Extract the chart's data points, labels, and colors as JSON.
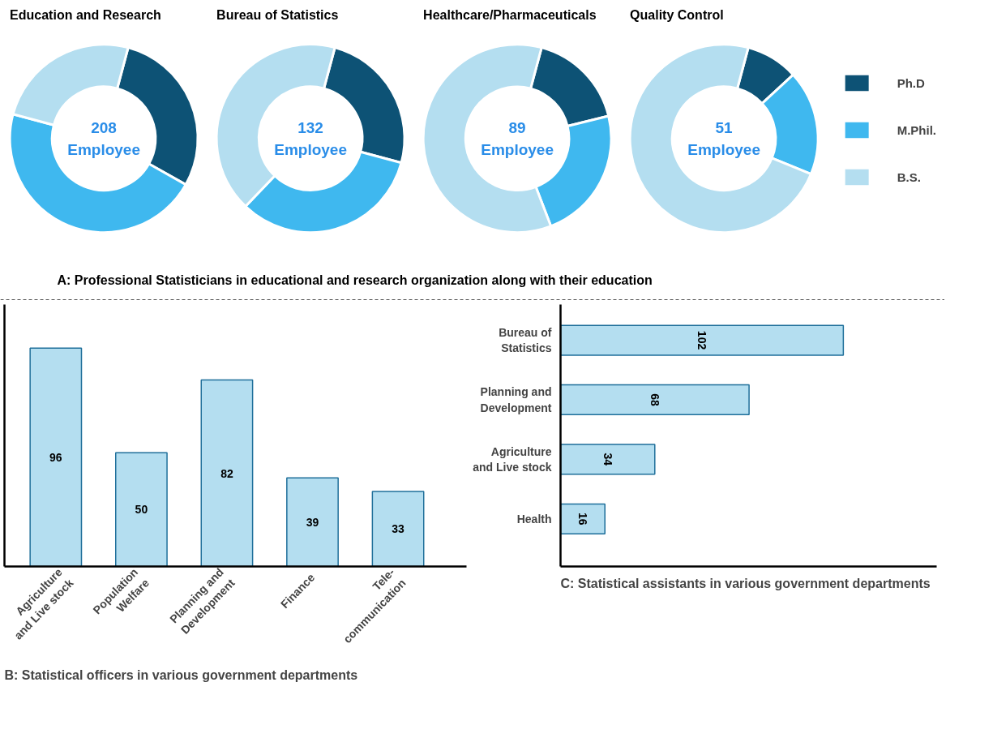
{
  "chart_data": [
    {
      "type": "donut",
      "title": "Education and Research",
      "categories": [
        "Ph.D",
        "M.Phil.",
        "B.S."
      ],
      "values": [
        29,
        46,
        25
      ],
      "colors": [
        "#0d5275",
        "#3fb8ef",
        "#b4def0"
      ],
      "annotations": [
        "208 Employee",
        "A:  Professional Statisticians in educational and research organization along with their education"
      ],
      "legend": "right"
    },
    {
      "type": "donut",
      "title": "Bureau of Statistics",
      "categories": [
        null,
        null,
        null
      ],
      "values": [
        25,
        33,
        42
      ],
      "colors": [
        "#0d5275",
        "#3fb8ef",
        "#b4def0"
      ],
      "annotations": [
        "132 Employee"
      ]
    },
    {
      "type": "donut",
      "title": "Healthcare/Pharmaceuticals",
      "categories": [
        null,
        null,
        null
      ],
      "values": [
        17,
        23,
        60
      ],
      "colors": [
        "#0d5275",
        "#3fb8ef",
        "#b4def0"
      ],
      "annotations": [
        "89 Employee"
      ]
    },
    {
      "type": "donut",
      "title": "Quality Control",
      "categories": [
        null,
        null,
        null
      ],
      "values": [
        9,
        18,
        73
      ],
      "colors": [
        "#0d5275",
        "#3fb8ef",
        "#b4def0"
      ],
      "annotations": [
        "51 Employee"
      ]
    },
    {
      "type": "bar",
      "categories": [
        "Agriculture and Live stock",
        "Population Welfare",
        "Planning and Development",
        "Finance",
        "Tele-communication"
      ],
      "values": [
        96,
        50,
        82,
        39,
        33
      ],
      "color": "#b4def0",
      "data_labels": true,
      "annotations": [
        "B: Statistical officers in various government departments"
      ]
    },
    {
      "type": "bar",
      "orientation": "horizontal",
      "categories": [
        "Bureau of Statistics",
        "Planning and Development",
        "Agriculture and Live stock",
        "Health"
      ],
      "values": [
        102,
        68,
        34,
        16
      ],
      "color": "#b4def0",
      "data_labels": true,
      "annotations": [
        "C:  Statistical assistants in various government departments"
      ]
    }
  ]
}
